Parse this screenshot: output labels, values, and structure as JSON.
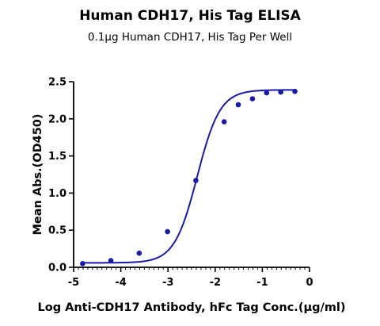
{
  "chart_data": {
    "type": "scatter",
    "title": "Human CDH17, His Tag ELISA",
    "subtitle": "0.1μg Human CDH17, His Tag Per Well",
    "xlabel": "Log Anti-CDH17 Antibody, hFc Tag Conc.(μg/ml)",
    "ylabel": "Mean Abs.(OD450)",
    "xlim": [
      -5,
      0
    ],
    "ylim": [
      0,
      2.5
    ],
    "xticks": [
      "-5",
      "-4",
      "-3",
      "-2",
      "-1",
      "0"
    ],
    "yticks": [
      "0.0",
      "0.5",
      "1.0",
      "1.5",
      "2.0",
      "2.5"
    ],
    "grid": false,
    "color": "#1a1aa8",
    "series": [
      {
        "x": [
          -4.81,
          -4.21,
          -3.61,
          -3.01,
          -2.41,
          -1.81,
          -1.51,
          -1.21,
          -0.91,
          -0.61,
          -0.31
        ],
        "y": [
          0.05,
          0.09,
          0.19,
          0.48,
          1.17,
          1.96,
          2.19,
          2.27,
          2.35,
          2.36,
          2.37
        ]
      }
    ],
    "fit": {
      "type": "4PL",
      "bottom": 0.06,
      "top": 2.39,
      "ec50_log": -2.38,
      "hill": 1.8
    }
  }
}
